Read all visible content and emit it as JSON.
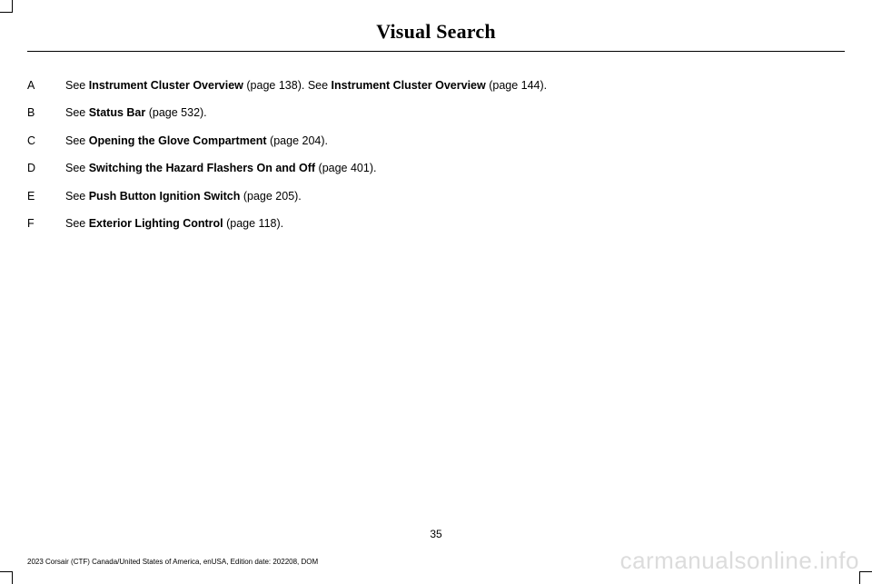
{
  "header": {
    "title": "Visual Search"
  },
  "items": [
    {
      "letter": "A",
      "parts": [
        {
          "see": "See ",
          "topic": "Instrument Cluster Overview",
          "pageref": " (page 138).  "
        },
        {
          "see": "See ",
          "topic": "Instrument Cluster Overview",
          "pageref": " (page 144)."
        }
      ]
    },
    {
      "letter": "B",
      "parts": [
        {
          "see": "See ",
          "topic": "Status Bar",
          "pageref": " (page 532)."
        }
      ]
    },
    {
      "letter": "C",
      "parts": [
        {
          "see": "See ",
          "topic": "Opening the Glove Compartment",
          "pageref": " (page 204)."
        }
      ]
    },
    {
      "letter": "D",
      "parts": [
        {
          "see": "See ",
          "topic": "Switching the Hazard Flashers On and Off",
          "pageref": " (page 401)."
        }
      ]
    },
    {
      "letter": "E",
      "parts": [
        {
          "see": "See ",
          "topic": "Push Button Ignition Switch",
          "pageref": " (page 205)."
        }
      ]
    },
    {
      "letter": "F",
      "parts": [
        {
          "see": "See ",
          "topic": "Exterior Lighting Control",
          "pageref": " (page 118)."
        }
      ]
    }
  ],
  "page_number": "35",
  "footer_left": "2023 Corsair (CTF) Canada/United States of America, enUSA, Edition date: 202208, DOM",
  "watermark": "carmanualsonline.info"
}
